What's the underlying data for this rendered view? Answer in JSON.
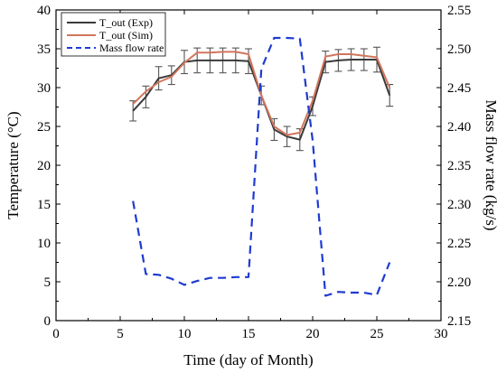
{
  "chart_data": {
    "type": "line",
    "xlabel": "Time (day of Month)",
    "ylabel_left": "Temperature (",
    "ylabel_left_unit": "°C)",
    "ylabel_right": "Mass flow rate (kg/s)",
    "xlim": [
      0,
      30
    ],
    "ylim_left": [
      0,
      40
    ],
    "ylim_right": [
      2.15,
      2.55
    ],
    "x_ticks": [
      0,
      5,
      10,
      15,
      20,
      25,
      30
    ],
    "y_left_ticks": [
      0,
      5,
      10,
      15,
      20,
      25,
      30,
      35,
      40
    ],
    "y_right_ticks": [
      "2.15",
      "2.20",
      "2.25",
      "2.30",
      "2.35",
      "2.40",
      "2.45",
      "2.50",
      "2.55"
    ],
    "grid": false,
    "legend_position": "top-left",
    "series": [
      {
        "name": "T_out (Exp)",
        "axis": "left",
        "color": "#3a3a3a",
        "style": "solid",
        "x": [
          6,
          7,
          8,
          9,
          10,
          11,
          12,
          13,
          14,
          15,
          16,
          17,
          18,
          19,
          20,
          21,
          22,
          23,
          24,
          25,
          26
        ],
        "y": [
          27.0,
          28.8,
          31.2,
          31.6,
          33.3,
          33.5,
          33.5,
          33.5,
          33.5,
          33.4,
          29.0,
          24.6,
          23.7,
          23.3,
          27.6,
          33.3,
          33.5,
          33.6,
          33.6,
          33.6,
          29.0
        ],
        "yerr": [
          1.3,
          1.4,
          1.5,
          1.2,
          1.5,
          1.6,
          1.6,
          1.6,
          1.6,
          1.6,
          1.2,
          1.4,
          1.3,
          1.4,
          1.2,
          1.4,
          1.4,
          1.4,
          1.4,
          1.6,
          1.4
        ]
      },
      {
        "name": "T_out (Sim)",
        "axis": "left",
        "color": "#d2755d",
        "style": "solid",
        "x": [
          6,
          7,
          8,
          9,
          10,
          11,
          12,
          13,
          14,
          15,
          16,
          17,
          18,
          19,
          20,
          21,
          22,
          23,
          24,
          25,
          26
        ],
        "y": [
          27.9,
          29.5,
          30.7,
          31.4,
          33.2,
          34.5,
          34.5,
          34.6,
          34.6,
          34.3,
          29.0,
          25.0,
          23.9,
          24.2,
          28.3,
          34.0,
          34.3,
          34.3,
          34.1,
          33.9,
          30.0
        ]
      },
      {
        "name": "Mass flow rate",
        "axis": "right",
        "color": "#1f3bd1",
        "style": "dashed",
        "x": [
          6,
          7,
          8,
          9,
          10,
          11,
          12,
          13,
          14,
          15,
          16,
          17,
          18,
          19,
          20,
          21,
          22,
          23,
          24,
          25,
          26
        ],
        "y": [
          2.304,
          2.21,
          2.209,
          2.204,
          2.196,
          2.201,
          2.205,
          2.205,
          2.206,
          2.206,
          2.474,
          2.514,
          2.514,
          2.513,
          2.382,
          2.182,
          2.187,
          2.186,
          2.186,
          2.183,
          2.225
        ]
      }
    ]
  }
}
